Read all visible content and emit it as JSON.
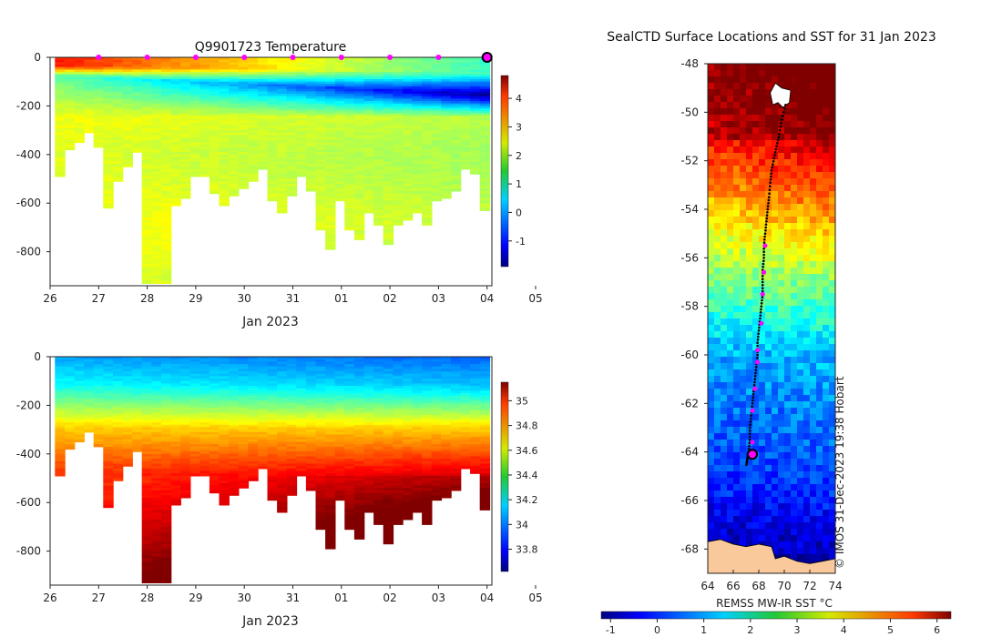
{
  "chart_data": [
    {
      "type": "heatmap",
      "title": "Q9901723  Temperature",
      "variable": "temperature",
      "xlabel": "Jan 2023",
      "ylabel": "",
      "x_range_days": [
        26,
        35.1
      ],
      "ylim": [
        -940,
        0
      ],
      "x_tick_labels": [
        "26",
        "27",
        "28",
        "29",
        "30",
        "31",
        "01",
        "02",
        "03",
        "04",
        "05"
      ],
      "y_ticks": [
        0,
        -200,
        -400,
        -600,
        -800
      ],
      "colorbar": {
        "min": -1.9,
        "max": 4.8,
        "ticks": [
          4,
          3,
          2,
          1,
          0,
          -1
        ]
      },
      "surface_markers_days": [
        27,
        28,
        29,
        30,
        31,
        32,
        33,
        34,
        35
      ],
      "current_marker_day": 35.0
    },
    {
      "type": "heatmap",
      "title": "",
      "variable": "salinity",
      "xlabel": "Jan 2023",
      "ylabel": "",
      "x_range_days": [
        26,
        35.1
      ],
      "ylim": [
        -940,
        0
      ],
      "x_tick_labels": [
        "26",
        "27",
        "28",
        "29",
        "30",
        "31",
        "01",
        "02",
        "03",
        "04",
        "05"
      ],
      "y_ticks": [
        0,
        -200,
        -400,
        -600,
        -800
      ],
      "colorbar": {
        "min": 33.62,
        "max": 35.15,
        "ticks": [
          35,
          34.8,
          34.6,
          34.4,
          34.2,
          34,
          33.8
        ]
      }
    },
    {
      "type": "heatmap",
      "title": "SealCTD Surface Locations and SST for 31 Jan 2023",
      "variable": "sea surface temperature map",
      "xlabel": "",
      "ylabel": "",
      "xlim": [
        64,
        74
      ],
      "ylim": [
        -69,
        -48
      ],
      "x_ticks": [
        64,
        66,
        68,
        70,
        72,
        74
      ],
      "y_ticks": [
        -48,
        -50,
        -52,
        -54,
        -56,
        -58,
        -60,
        -62,
        -64,
        -66,
        -68
      ],
      "colorbar": {
        "label": "REMSS MW-IR SST °C",
        "min": -1.2,
        "max": 6.3,
        "ticks": [
          -1,
          0,
          1,
          2,
          3,
          4,
          5,
          6
        ]
      },
      "track": [
        [
          70.1,
          -49.7
        ],
        [
          69.8,
          -50.3
        ],
        [
          69.6,
          -50.9
        ],
        [
          69.4,
          -51.4
        ],
        [
          69.2,
          -51.9
        ],
        [
          69.0,
          -52.4
        ],
        [
          68.9,
          -52.9
        ],
        [
          68.8,
          -53.5
        ],
        [
          68.7,
          -54.0
        ],
        [
          68.6,
          -54.5
        ],
        [
          68.5,
          -55.0
        ],
        [
          68.4,
          -55.5
        ],
        [
          68.4,
          -56.0
        ],
        [
          68.3,
          -56.5
        ],
        [
          68.3,
          -57.0
        ],
        [
          68.3,
          -57.5
        ],
        [
          68.2,
          -58.0
        ],
        [
          68.1,
          -58.5
        ],
        [
          68.0,
          -59.0
        ],
        [
          67.9,
          -59.5
        ],
        [
          67.9,
          -60.0
        ],
        [
          67.8,
          -60.5
        ],
        [
          67.7,
          -61.0
        ],
        [
          67.6,
          -61.5
        ],
        [
          67.5,
          -62.0
        ],
        [
          67.4,
          -62.5
        ],
        [
          67.3,
          -63.0
        ],
        [
          67.3,
          -63.5
        ],
        [
          67.2,
          -64.0
        ],
        [
          67.1,
          -64.3
        ],
        [
          67.0,
          -64.6
        ]
      ],
      "highlighted_points": [
        [
          68.5,
          -55.5
        ],
        [
          68.4,
          -56.6
        ],
        [
          68.3,
          -57.5
        ],
        [
          68.2,
          -58.7
        ],
        [
          67.9,
          -59.8
        ],
        [
          67.9,
          -60.3
        ],
        [
          67.7,
          -61.4
        ],
        [
          67.5,
          -62.3
        ],
        [
          67.5,
          -63.6
        ]
      ],
      "current_location": [
        67.5,
        -64.1
      ]
    }
  ],
  "page": {
    "x_axis_label": "Jan 2023",
    "map_colorbar_label": "REMSS MW-IR SST °C",
    "credit": "© IMOS 31-Dec-2023 19:38 Hobart"
  },
  "colors": {
    "highlight": "#ff00ff",
    "track": "#000000",
    "land": "#f9c99b"
  }
}
